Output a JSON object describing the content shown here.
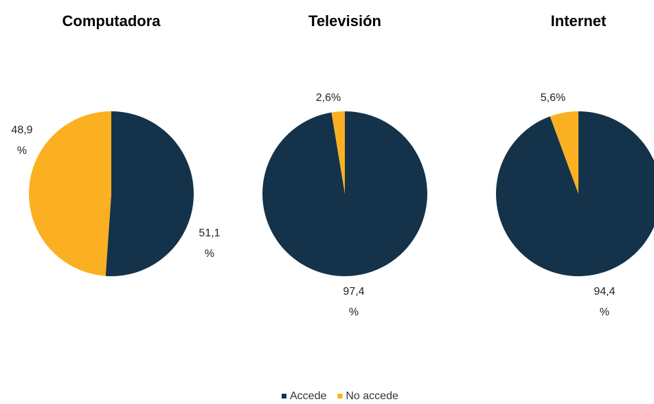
{
  "chart_data": [
    {
      "type": "pie",
      "title": "Computadora",
      "categories": [
        "Accede",
        "No accede"
      ],
      "values": [
        51.1,
        48.9
      ],
      "value_labels": [
        "51,1%",
        "48,9%"
      ],
      "colors": [
        "#14334a",
        "#fbb022"
      ]
    },
    {
      "type": "pie",
      "title": "Televisión",
      "categories": [
        "Accede",
        "No accede"
      ],
      "values": [
        97.4,
        2.6
      ],
      "value_labels": [
        "97,4%",
        "2,6%"
      ],
      "colors": [
        "#14334a",
        "#fbb022"
      ]
    },
    {
      "type": "pie",
      "title": "Internet",
      "categories": [
        "Accede",
        "No accede"
      ],
      "values": [
        94.4,
        5.6
      ],
      "value_labels": [
        "94,4%",
        "5,6%"
      ],
      "colors": [
        "#14334a",
        "#fbb022"
      ]
    }
  ]
}
